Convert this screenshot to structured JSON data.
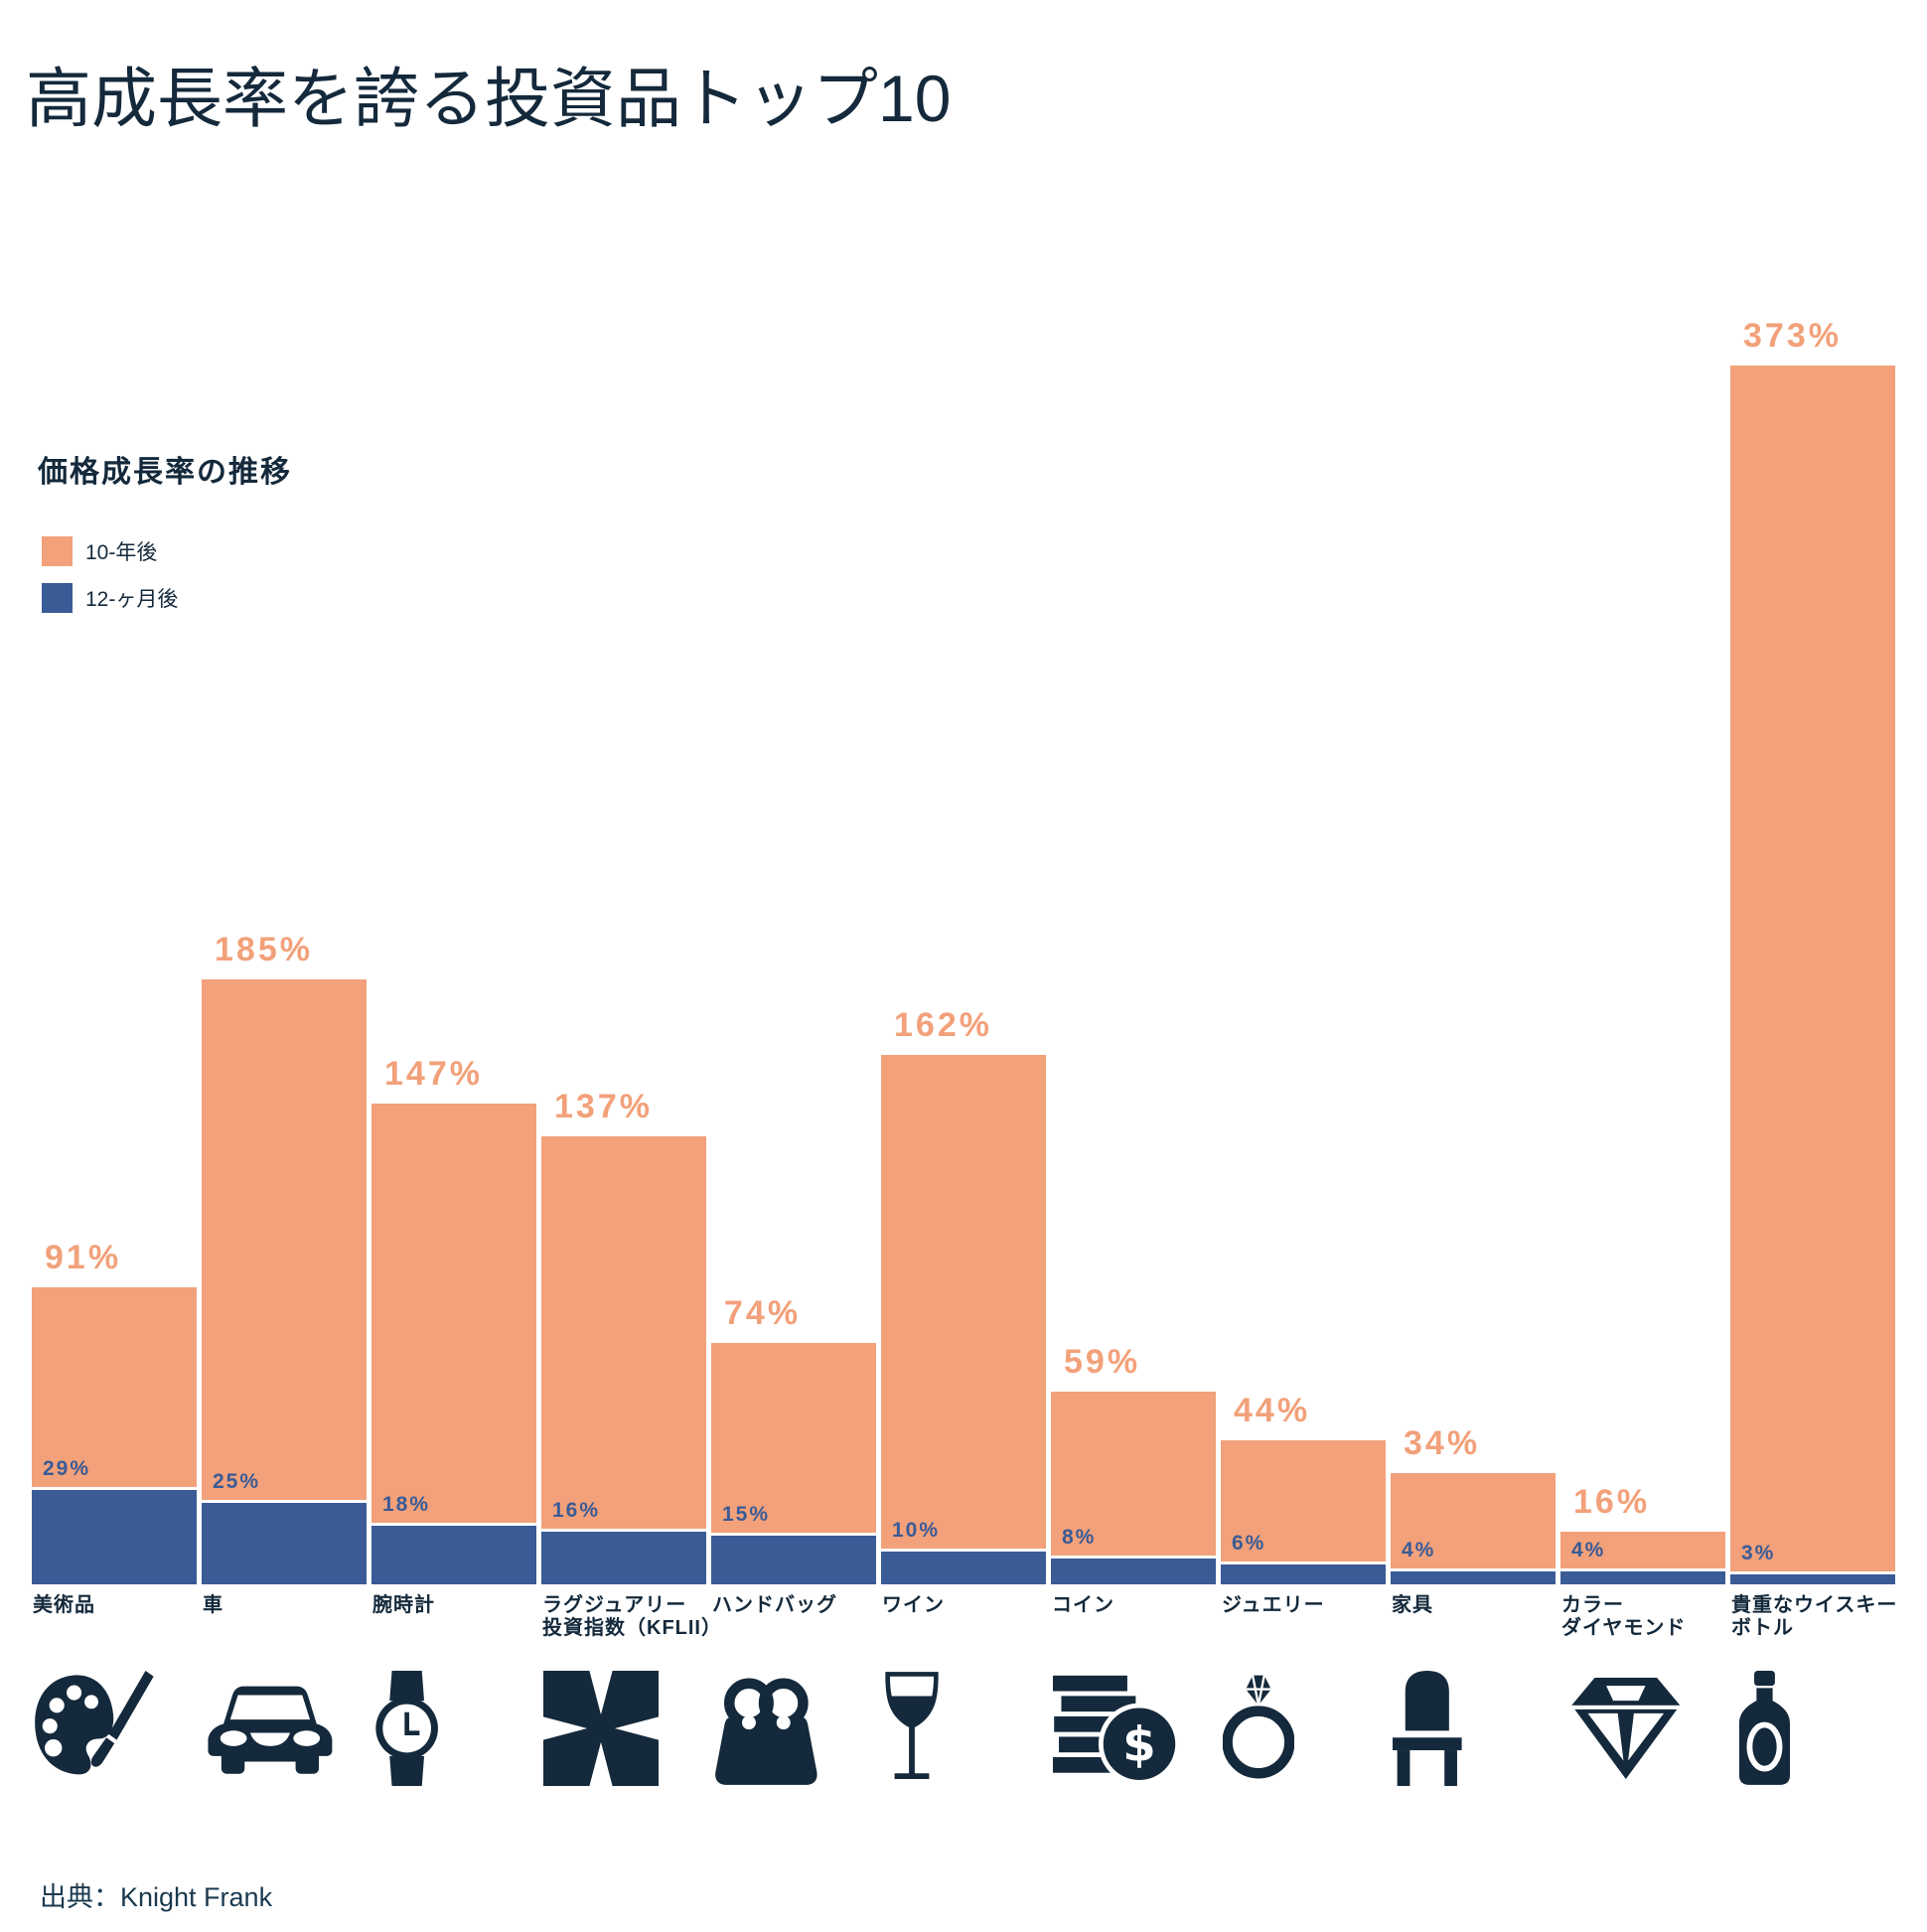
{
  "title": "高成長率を誇る投資品トップ10",
  "subtitle": "価格成長率の推移",
  "legend": {
    "items": [
      {
        "label": "10-年後",
        "color": "#F2A17A"
      },
      {
        "label": "12-ヶ月後",
        "color": "#3A5B96"
      }
    ]
  },
  "source": "出典：Knight Frank",
  "chart_data": {
    "type": "bar",
    "title": "価格成長率の推移",
    "categories": [
      "美術品",
      "車",
      "腕時計",
      "ラグジュアリー\n投資指数（KFLII）",
      "ハンドバッグ",
      "ワイン",
      "コイン",
      "ジュエリー",
      "家具",
      "カラー\nダイヤモンド",
      "貴重なウイスキー\nボトル"
    ],
    "series": [
      {
        "name": "10-年後",
        "color": "#F2A17A",
        "values": [
          91,
          185,
          147,
          137,
          74,
          162,
          59,
          44,
          34,
          16,
          373
        ]
      },
      {
        "name": "12-ヶ月後",
        "color": "#3A5B96",
        "values": [
          29,
          25,
          18,
          16,
          15,
          10,
          8,
          6,
          4,
          4,
          3
        ]
      }
    ],
    "value_suffix": "%",
    "ylim": [
      0,
      373
    ],
    "grid": false,
    "legend_position": "upper-left",
    "icons": [
      "palette",
      "car",
      "watch",
      "kflii-logo",
      "handbag",
      "wine-glass",
      "coins",
      "ring",
      "chair",
      "diamond",
      "whisky-bottle"
    ]
  }
}
